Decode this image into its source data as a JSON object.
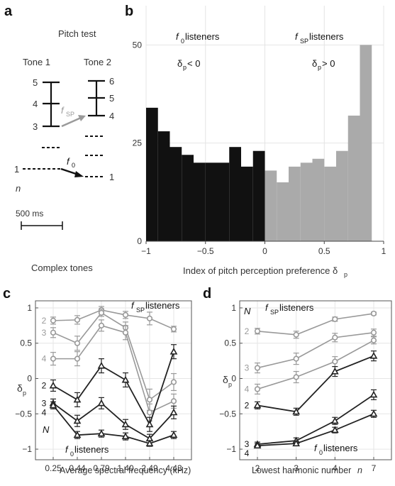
{
  "panels": {
    "a": {
      "label": "a",
      "title": "Pitch test",
      "tone1": "Tone 1",
      "tone2": "Tone 2",
      "tone1_numbers": [
        "5",
        "4",
        "3",
        "1"
      ],
      "tone2_numbers": [
        "6",
        "5",
        "4",
        "1"
      ],
      "fsp_main": "f",
      "fsp_sub": "SP",
      "f0_main": "f",
      "f0_sub": "0",
      "n_label": "n",
      "scale_label": "500 ms",
      "caption": "Complex tones",
      "colors": {
        "fsp_arrow": "#9a9a9a",
        "f0_arrow": "#111111"
      }
    },
    "b": {
      "label": "b"
    },
    "c": {
      "label": "c"
    },
    "d": {
      "label": "d"
    }
  },
  "chart_data": [
    {
      "type": "bar",
      "panel": "b",
      "xlabel_main": "Index of pitch perception preference δ",
      "xlabel_sub": "p",
      "xlim": [
        -1,
        1
      ],
      "ylim": [
        0,
        60
      ],
      "xticks": [
        -1,
        -0.5,
        0,
        0.5,
        1
      ],
      "xtick_labels": [
        "−1",
        "−0.5",
        "0",
        "0.5",
        "1"
      ],
      "yticks": [
        0,
        25,
        50
      ],
      "ytick_labels": [
        "0",
        "25",
        "50"
      ],
      "bin_width": 0.1,
      "bin_starts": [
        -1.0,
        -0.9,
        -0.8,
        -0.7,
        -0.6,
        -0.5,
        -0.4,
        -0.3,
        -0.2,
        -0.1,
        0.0,
        0.1,
        0.2,
        0.3,
        0.4,
        0.5,
        0.6,
        0.7,
        0.8,
        0.9
      ],
      "values": [
        34,
        28,
        24,
        22,
        20,
        20,
        20,
        24,
        19,
        23,
        18,
        15,
        19,
        20,
        21,
        19,
        23,
        32,
        50,
        0
      ],
      "bar_colors": [
        "#111111",
        "#111111",
        "#111111",
        "#111111",
        "#111111",
        "#111111",
        "#111111",
        "#111111",
        "#111111",
        "#111111",
        "#aaaaaa",
        "#aaaaaa",
        "#aaaaaa",
        "#aaaaaa",
        "#aaaaaa",
        "#aaaaaa",
        "#aaaaaa",
        "#aaaaaa",
        "#aaaaaa",
        "#aaaaaa"
      ],
      "annotations": {
        "left_group": {
          "main": "f",
          "sub": "0",
          "rest": " listeners",
          "cond_main": "δ",
          "cond_sub": "p",
          "cond_rest": " < 0"
        },
        "right_group": {
          "main": "f",
          "sub": "SP",
          "rest": " listeners",
          "cond_main": "δ",
          "cond_sub": "p",
          "cond_rest": " > 0"
        }
      },
      "grid": false
    },
    {
      "type": "line",
      "panel": "c",
      "xlabel": "Average spectral frequency (kHz)",
      "ylabel_main": "δ",
      "ylabel_sub": "p",
      "categories": [
        "0.25",
        "0.44",
        "0.79",
        "1.40",
        "2.49",
        "4.43"
      ],
      "ylim": [
        -1.15,
        1.1
      ],
      "yticks": [
        1,
        0.5,
        0,
        -0.5,
        -1
      ],
      "ytick_labels": [
        "1",
        "0.5",
        "0",
        "−0.5",
        "−1"
      ],
      "top_annotation": {
        "main": "f",
        "sub": "SP",
        "rest": " listeners"
      },
      "bottom_annotation": {
        "main": "f",
        "sub": "0",
        "rest": " listeners"
      },
      "n_label": "N",
      "grid": true,
      "series": [
        {
          "group": "fsp",
          "label": "2",
          "marker": "circle",
          "color": "#999999",
          "values": [
            0.82,
            0.83,
            0.97,
            0.9,
            0.85,
            0.7
          ],
          "err": [
            0.05,
            0.06,
            0.05,
            0.05,
            0.09,
            0.04
          ]
        },
        {
          "group": "fsp",
          "label": "3",
          "marker": "circle",
          "color": "#999999",
          "values": [
            0.65,
            0.5,
            0.93,
            0.72,
            -0.3,
            -0.05
          ],
          "err": [
            0.07,
            0.1,
            0.05,
            0.08,
            0.15,
            0.12
          ]
        },
        {
          "group": "fsp",
          "label": "4",
          "marker": "circle",
          "color": "#999999",
          "values": [
            0.28,
            0.28,
            0.75,
            0.65,
            -0.48,
            -0.32
          ],
          "err": [
            0.09,
            0.1,
            0.08,
            0.1,
            0.12,
            0.1
          ]
        },
        {
          "group": "f0",
          "label": "2",
          "marker": "triangle",
          "color": "#222222",
          "values": [
            -0.1,
            -0.3,
            0.18,
            -0.02,
            -0.65,
            0.38
          ],
          "err": [
            0.08,
            0.1,
            0.1,
            0.1,
            0.1,
            0.1
          ]
        },
        {
          "group": "f0",
          "label": "3",
          "marker": "triangle",
          "color": "#222222",
          "values": [
            -0.35,
            -0.6,
            -0.35,
            -0.65,
            -0.85,
            -0.48
          ],
          "err": [
            0.06,
            0.08,
            0.08,
            0.07,
            0.06,
            0.09
          ]
        },
        {
          "group": "f0",
          "label": "4",
          "marker": "triangle",
          "color": "#222222",
          "values": [
            -0.38,
            -0.8,
            -0.78,
            -0.82,
            -0.92,
            -0.8
          ],
          "err": [
            0.05,
            0.05,
            0.05,
            0.05,
            0.04,
            0.05
          ]
        }
      ]
    },
    {
      "type": "line",
      "panel": "d",
      "xlabel_main": "Lowest harmonic number ",
      "xlabel_italic": "n",
      "ylabel_main": "δ",
      "ylabel_sub": "p",
      "categories": [
        "2",
        "3",
        "4",
        "7"
      ],
      "ylim": [
        -1.15,
        1.1
      ],
      "yticks": [
        1,
        0.5,
        0,
        -0.5,
        -1
      ],
      "ytick_labels": [
        "1",
        "0.5",
        "0",
        "−0.5",
        "−1"
      ],
      "top_annotation": {
        "main": "f",
        "sub": "SP",
        "rest": " listeners"
      },
      "bottom_annotation": {
        "main": "f",
        "sub": "0",
        "rest": " listeners"
      },
      "n_label": "N",
      "grid": true,
      "series": [
        {
          "group": "fsp",
          "label": "2",
          "marker": "circle",
          "color": "#999999",
          "values": [
            0.67,
            0.62,
            0.84,
            0.92
          ],
          "err": [
            0.04,
            0.05,
            0.03,
            0.02
          ]
        },
        {
          "group": "fsp",
          "label": "3",
          "marker": "circle",
          "color": "#999999",
          "values": [
            0.15,
            0.28,
            0.58,
            0.65
          ],
          "err": [
            0.07,
            0.08,
            0.06,
            0.05
          ]
        },
        {
          "group": "fsp",
          "label": "4",
          "marker": "circle",
          "color": "#999999",
          "values": [
            -0.15,
            0.02,
            0.24,
            0.54
          ],
          "err": [
            0.07,
            0.08,
            0.07,
            0.05
          ]
        },
        {
          "group": "f0",
          "label": "2",
          "marker": "triangle",
          "color": "#222222",
          "values": [
            -0.38,
            -0.47,
            0.1,
            0.32
          ],
          "err": [
            0.05,
            0.05,
            0.07,
            0.07
          ]
        },
        {
          "group": "f0",
          "label": "3",
          "marker": "triangle",
          "color": "#222222",
          "values": [
            -0.93,
            -0.88,
            -0.6,
            -0.23
          ],
          "err": [
            0.03,
            0.04,
            0.05,
            0.07
          ]
        },
        {
          "group": "f0",
          "label": "4",
          "marker": "triangle",
          "color": "#222222",
          "values": [
            -0.95,
            -0.92,
            -0.73,
            -0.5
          ],
          "err": [
            0.03,
            0.03,
            0.04,
            0.05
          ]
        }
      ]
    }
  ]
}
